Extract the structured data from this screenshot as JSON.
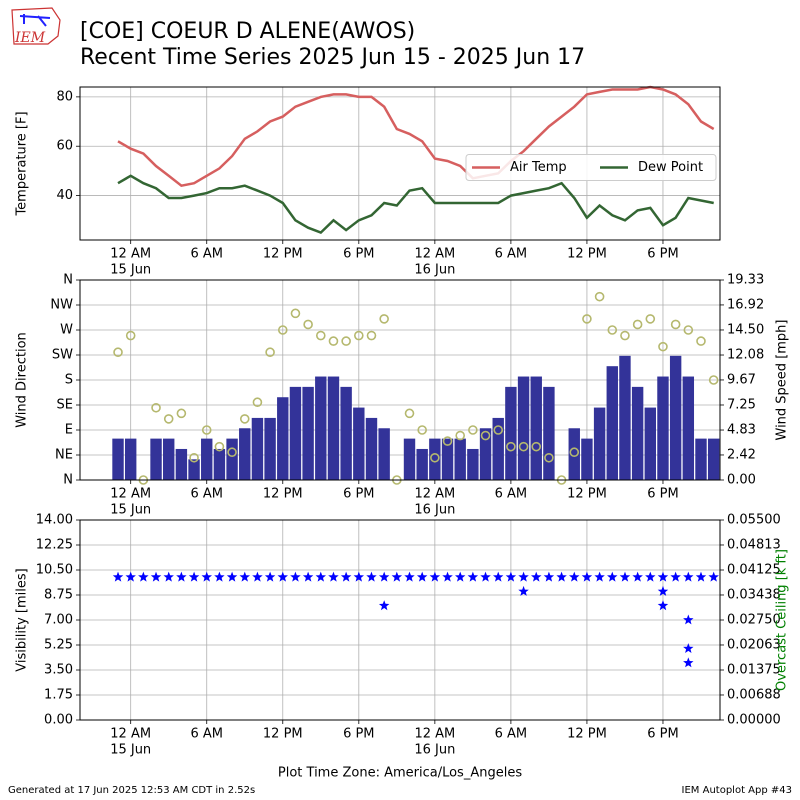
{
  "title": "[COE] COEUR D ALENE(AWOS)",
  "subtitle": "Recent Time Series 2025 Jun 15 - 2025 Jun 17",
  "logo_text": "IEM",
  "x_axis_label": "Plot Time Zone: America/Los_Angeles",
  "footer_left": "Generated at 17 Jun 2025 12:53 AM CDT in 2.52s",
  "footer_right": "IEM Autoplot App #43",
  "chart_data": [
    {
      "type": "line",
      "ylabel": "Temperature [F]",
      "xlim": [
        "2025-06-14 20:00",
        "2025-06-16 22:30"
      ],
      "xticks": [
        {
          "value": "2025-06-15 00:00",
          "label": "12 AM",
          "sublabel": "15 Jun"
        },
        {
          "value": "2025-06-15 06:00",
          "label": "6 AM"
        },
        {
          "value": "2025-06-15 12:00",
          "label": "12 PM"
        },
        {
          "value": "2025-06-15 18:00",
          "label": "6 PM"
        },
        {
          "value": "2025-06-16 00:00",
          "label": "12 AM",
          "sublabel": "16 Jun"
        },
        {
          "value": "2025-06-16 06:00",
          "label": "6 AM"
        },
        {
          "value": "2025-06-16 12:00",
          "label": "12 PM"
        },
        {
          "value": "2025-06-16 18:00",
          "label": "6 PM"
        }
      ],
      "x": [
        "2025-06-14 23:00",
        "2025-06-15 00:00",
        "2025-06-15 01:00",
        "2025-06-15 02:00",
        "2025-06-15 03:00",
        "2025-06-15 04:00",
        "2025-06-15 05:00",
        "2025-06-15 06:00",
        "2025-06-15 07:00",
        "2025-06-15 08:00",
        "2025-06-15 09:00",
        "2025-06-15 10:00",
        "2025-06-15 11:00",
        "2025-06-15 12:00",
        "2025-06-15 13:00",
        "2025-06-15 14:00",
        "2025-06-15 15:00",
        "2025-06-15 16:00",
        "2025-06-15 17:00",
        "2025-06-15 18:00",
        "2025-06-15 19:00",
        "2025-06-15 20:00",
        "2025-06-15 21:00",
        "2025-06-15 22:00",
        "2025-06-15 23:00",
        "2025-06-16 00:00",
        "2025-06-16 01:00",
        "2025-06-16 02:00",
        "2025-06-16 03:00",
        "2025-06-16 04:00",
        "2025-06-16 05:00",
        "2025-06-16 06:00",
        "2025-06-16 07:00",
        "2025-06-16 08:00",
        "2025-06-16 09:00",
        "2025-06-16 10:00",
        "2025-06-16 11:00",
        "2025-06-16 12:00",
        "2025-06-16 13:00",
        "2025-06-16 14:00",
        "2025-06-16 15:00",
        "2025-06-16 16:00",
        "2025-06-16 17:00",
        "2025-06-16 18:00",
        "2025-06-16 19:00",
        "2025-06-16 20:00",
        "2025-06-16 21:00",
        "2025-06-16 22:00"
      ],
      "series": [
        {
          "name": "Air Temp",
          "color": "#d65f5f",
          "values": [
            62,
            59,
            57,
            52,
            48,
            44,
            45,
            48,
            51,
            56,
            63,
            66,
            70,
            72,
            76,
            78,
            80,
            81,
            81,
            80,
            80,
            76,
            67,
            65,
            62,
            55,
            54,
            52,
            47,
            48,
            49,
            54,
            58,
            63,
            68,
            72,
            76,
            81,
            82,
            83,
            83,
            83,
            84,
            83,
            81,
            77,
            70,
            67
          ]
        },
        {
          "name": "Dew Point",
          "color": "#336633",
          "values": [
            45,
            48,
            45,
            43,
            39,
            39,
            40,
            41,
            43,
            43,
            44,
            42,
            40,
            37,
            30,
            27,
            25,
            30,
            26,
            30,
            32,
            37,
            36,
            42,
            43,
            37,
            37,
            37,
            37,
            37,
            37,
            40,
            41,
            42,
            43,
            45,
            39,
            31,
            36,
            32,
            30,
            34,
            35,
            28,
            31,
            39,
            38,
            37
          ]
        }
      ],
      "ylim": [
        22,
        84
      ],
      "yticks": [
        40,
        60,
        80
      ],
      "grid": true,
      "legend": "center right"
    },
    {
      "type": "wind",
      "ylabel": "Wind Direction",
      "y2label": "Wind Speed [mph]",
      "series": [
        {
          "kind": "bar",
          "axis": "y2",
          "color": "#333399",
          "values": [
            4,
            4,
            0,
            4,
            4,
            3,
            2,
            4,
            3,
            4,
            5,
            6,
            6,
            8,
            9,
            9,
            10,
            10,
            9,
            7,
            6,
            5,
            0,
            4,
            3,
            4,
            4,
            4,
            3,
            5,
            6,
            9,
            10,
            10,
            9,
            0,
            5,
            4,
            7,
            11,
            12,
            9,
            7,
            10,
            12,
            10,
            4,
            4
          ]
        },
        {
          "kind": "scatter",
          "color": "#b5b86e",
          "values": [
            230,
            260,
            0,
            130,
            110,
            120,
            40,
            90,
            60,
            50,
            110,
            140,
            230,
            270,
            300,
            280,
            260,
            250,
            250,
            260,
            260,
            290,
            0,
            120,
            90,
            40,
            70,
            80,
            90,
            80,
            90,
            60,
            60,
            60,
            40,
            0,
            50,
            290,
            330,
            270,
            260,
            280,
            290,
            240,
            280,
            270,
            250,
            180
          ]
        }
      ],
      "ylim": [
        0,
        360
      ],
      "yticks": [
        {
          "value": 0,
          "label": "N"
        },
        {
          "value": 45,
          "label": "NE"
        },
        {
          "value": 90,
          "label": "E"
        },
        {
          "value": 135,
          "label": "SE"
        },
        {
          "value": 180,
          "label": "S"
        },
        {
          "value": 225,
          "label": "SW"
        },
        {
          "value": 270,
          "label": "W"
        },
        {
          "value": 315,
          "label": "NW"
        },
        {
          "value": 360,
          "label": "N"
        }
      ],
      "y2lim": [
        0,
        19.33
      ],
      "y2ticks": [
        {
          "value": 0,
          "label": "0.00"
        },
        2.42,
        4.83,
        7.25,
        9.67,
        12.08,
        {
          "value": 14.5,
          "label": "14.50"
        },
        16.92,
        19.33
      ],
      "grid": true
    },
    {
      "type": "scatter",
      "ylabel": "Visibility [miles]",
      "y2label": "Overcast Ceiling [k ft]",
      "y2color": "#008000",
      "series": [
        {
          "color": "#0000ff",
          "values": [
            10,
            10,
            10,
            10,
            10,
            10,
            10,
            10,
            10,
            10,
            10,
            10,
            10,
            10,
            10,
            10,
            10,
            10,
            10,
            10,
            10,
            10,
            10,
            10,
            10,
            10,
            10,
            10,
            10,
            10,
            10,
            10,
            10,
            10,
            10,
            10,
            10,
            10,
            10,
            10,
            10,
            10,
            10,
            10,
            10,
            10,
            10,
            10
          ]
        },
        {
          "color": "#0000ff",
          "x": [
            "2025-06-15 20:00",
            "2025-06-16 07:00",
            "2025-06-16 18:00",
            "2025-06-16 18:00",
            "2025-06-16 20:00",
            "2025-06-16 20:00",
            "2025-06-16 20:00"
          ],
          "values": [
            8,
            9,
            9,
            8,
            7,
            5,
            4
          ]
        }
      ],
      "ylim": [
        0,
        14
      ],
      "yticks": [
        {
          "value": 0,
          "label": "0.00"
        },
        1.75,
        {
          "value": 3.5,
          "label": "3.50"
        },
        5.25,
        {
          "value": 7,
          "label": "7.00"
        },
        8.75,
        {
          "value": 10.5,
          "label": "10.50"
        },
        12.25,
        {
          "value": 14,
          "label": "14.00"
        }
      ],
      "y2lim": [
        0,
        0.055
      ],
      "y2ticks": [
        {
          "value": 0,
          "label": "0.00000"
        },
        0.00688,
        0.01375,
        0.02063,
        {
          "value": 0.0275,
          "label": "0.02750"
        },
        0.03438,
        0.04125,
        0.04813,
        {
          "value": 0.055,
          "label": "0.05500"
        }
      ],
      "grid": true
    }
  ]
}
